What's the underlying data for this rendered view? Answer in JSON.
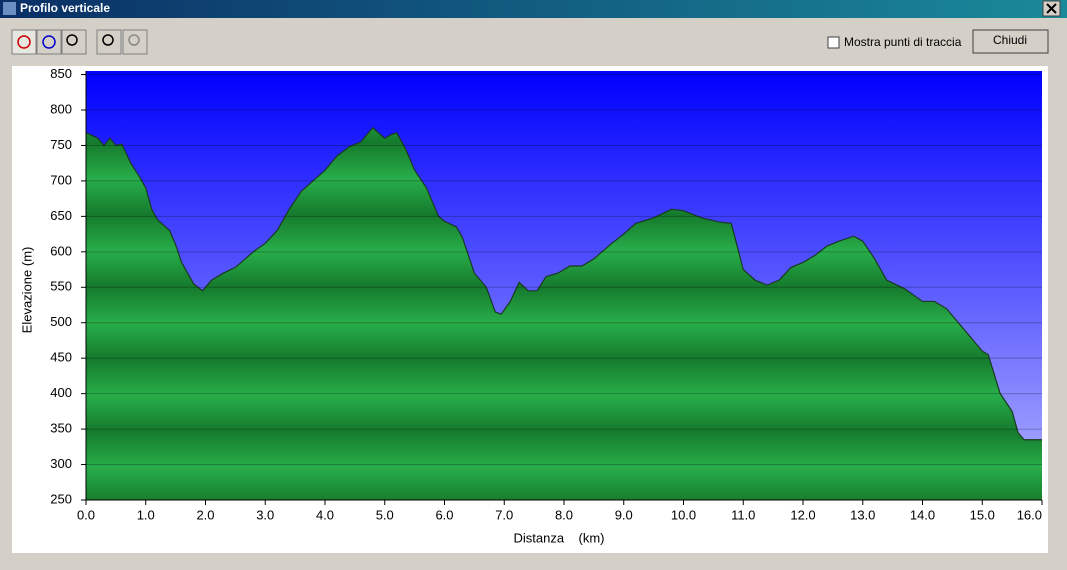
{
  "window": {
    "title": "Profilo verticale",
    "checkbox_label": "Mostra punti di traccia",
    "button_label": "Chiudi"
  },
  "chart_data": {
    "type": "area",
    "xlabel": "Distanza    (km)",
    "ylabel": "Elevazione (m)",
    "x": [
      0,
      0.2,
      0.3,
      0.4,
      0.5,
      0.6,
      0.75,
      0.9,
      1.0,
      1.1,
      1.2,
      1.4,
      1.5,
      1.6,
      1.8,
      1.95,
      2.1,
      2.3,
      2.5,
      2.8,
      3.0,
      3.2,
      3.4,
      3.6,
      3.8,
      4.0,
      4.2,
      4.4,
      4.6,
      4.8,
      5.0,
      5.1,
      5.2,
      5.35,
      5.5,
      5.7,
      5.9,
      6.0,
      6.2,
      6.3,
      6.5,
      6.7,
      6.85,
      6.95,
      7.1,
      7.25,
      7.4,
      7.55,
      7.7,
      7.9,
      8.1,
      8.3,
      8.5,
      8.8,
      9.0,
      9.2,
      9.5,
      9.8,
      10.0,
      10.3,
      10.6,
      10.8,
      11.0,
      11.2,
      11.4,
      11.6,
      11.8,
      12.0,
      12.2,
      12.4,
      12.6,
      12.85,
      13.0,
      13.2,
      13.4,
      13.7,
      14.0,
      14.2,
      14.4,
      14.6,
      14.8,
      15.0,
      15.1,
      15.3,
      15.5,
      15.6,
      15.7,
      16.0
    ],
    "values": [
      768,
      760,
      750,
      760,
      750,
      752,
      725,
      705,
      690,
      660,
      645,
      630,
      610,
      585,
      555,
      545,
      560,
      570,
      578,
      600,
      612,
      630,
      660,
      685,
      700,
      715,
      735,
      748,
      755,
      775,
      760,
      765,
      768,
      745,
      715,
      690,
      650,
      643,
      635,
      620,
      570,
      550,
      515,
      512,
      530,
      557,
      545,
      545,
      565,
      570,
      580,
      580,
      590,
      612,
      625,
      640,
      648,
      660,
      658,
      648,
      642,
      640,
      575,
      560,
      553,
      560,
      578,
      585,
      595,
      608,
      615,
      622,
      615,
      590,
      560,
      548,
      530,
      530,
      520,
      500,
      480,
      460,
      455,
      400,
      375,
      345,
      335,
      335
    ],
    "xlim": [
      0,
      16
    ],
    "xticks": [
      {
        "value": 0,
        "label": "0.0"
      },
      {
        "value": 1,
        "label": "1.0"
      },
      {
        "value": 2,
        "label": "2.0"
      },
      {
        "value": 3,
        "label": "3.0"
      },
      {
        "value": 4,
        "label": "4.0"
      },
      {
        "value": 5,
        "label": "5.0"
      },
      {
        "value": 6,
        "label": "6.0"
      },
      {
        "value": 7,
        "label": "7.0"
      },
      {
        "value": 8,
        "label": "8.0"
      },
      {
        "value": 9,
        "label": "9.0"
      },
      {
        "value": 10,
        "label": "10.0"
      },
      {
        "value": 11,
        "label": "11.0"
      },
      {
        "value": 12,
        "label": "12.0"
      },
      {
        "value": 13,
        "label": "13.0"
      },
      {
        "value": 14,
        "label": "14.0"
      },
      {
        "value": 15,
        "label": "15.0"
      },
      {
        "value": 16,
        "label": "16.0"
      }
    ],
    "ylim": [
      250,
      855
    ],
    "yticks": [
      250,
      300,
      350,
      400,
      450,
      500,
      550,
      600,
      650,
      700,
      750,
      800,
      850
    ],
    "grid": true,
    "color": "#1f9a3c"
  }
}
